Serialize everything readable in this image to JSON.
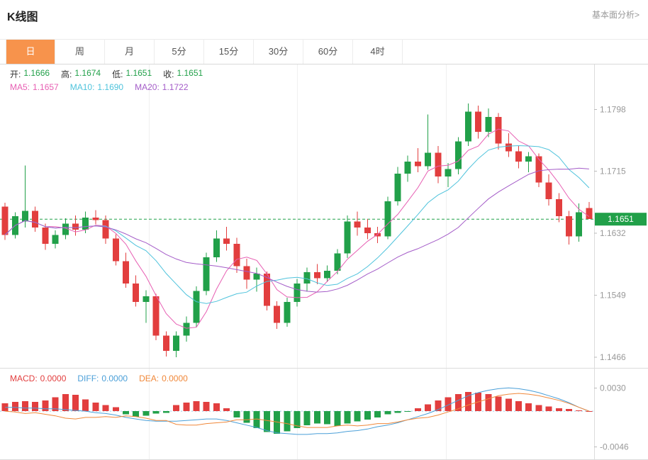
{
  "header": {
    "title": "K线图",
    "analysis_link": "基本面分析>"
  },
  "tabs": {
    "active_id": "day",
    "items": [
      {
        "id": "day",
        "label": "日"
      },
      {
        "id": "week",
        "label": "周"
      },
      {
        "id": "month",
        "label": "月"
      },
      {
        "id": "5min",
        "label": "5分"
      },
      {
        "id": "15min",
        "label": "15分"
      },
      {
        "id": "30min",
        "label": "30分"
      },
      {
        "id": "60min",
        "label": "60分"
      },
      {
        "id": "4hour",
        "label": "4时"
      }
    ]
  },
  "ohlc_legend": {
    "label_color": "#333333",
    "value_color": "#21a049",
    "items": [
      {
        "id": "open",
        "label": "开:",
        "value": "1.1666"
      },
      {
        "id": "high",
        "label": "高:",
        "value": "1.1674"
      },
      {
        "id": "low",
        "label": "低:",
        "value": "1.1651"
      },
      {
        "id": "close",
        "label": "收:",
        "value": "1.1651"
      }
    ]
  },
  "ma_legend": {
    "items": [
      {
        "id": "ma5",
        "label": "MA5:",
        "value": "1.1657",
        "color": "#e75fb3"
      },
      {
        "id": "ma10",
        "label": "MA10:",
        "value": "1.1690",
        "color": "#4fc3dc"
      },
      {
        "id": "ma20",
        "label": "MA20:",
        "value": "1.1722",
        "color": "#a45cc8"
      }
    ]
  },
  "macd_legend": {
    "items": [
      {
        "id": "macd",
        "label": "MACD:",
        "value": "0.0000",
        "color": "#e23e3e"
      },
      {
        "id": "diff",
        "label": "DIFF:",
        "value": "0.0000",
        "color": "#4a9fd8"
      },
      {
        "id": "dea",
        "label": "DEA:",
        "value": "0.0000",
        "color": "#f0883a"
      }
    ]
  },
  "colors": {
    "up": "#21a049",
    "down": "#e23e3e",
    "ma5": "#e75fb3",
    "ma10": "#4fc3dc",
    "ma20": "#a45cc8",
    "diff": "#4a9fd8",
    "dea": "#f0883a",
    "axis_text": "#999999",
    "tab_active_bg": "#f7934c",
    "border": "#dcdcdc",
    "grid": "#f0f0f0",
    "macd_zero_line": "#9ec9e8"
  },
  "chart_data": [
    {
      "type": "candlestick",
      "title": "K线图",
      "timeframe": "日",
      "y_axis_ticks": [
        "1.1798",
        "1.1715",
        "1.1632",
        "1.1549",
        "1.1466"
      ],
      "current_price": "1.1651",
      "ylim": [
        1.1452,
        1.1858
      ],
      "last_candle": {
        "open": "1.1666",
        "high": "1.1674",
        "low": "1.1651",
        "close": "1.1651"
      },
      "ma_values": {
        "ma5": "1.1657",
        "ma10": "1.1690",
        "ma20": "1.1722"
      },
      "legend_note": "green dashed line at current price 1.1651",
      "candles": [
        [
          1.1668,
          1.1673,
          1.1623,
          1.163
        ],
        [
          1.163,
          1.166,
          1.1625,
          1.1655
        ],
        [
          1.1648,
          1.1723,
          1.164,
          1.1662
        ],
        [
          1.1662,
          1.1668,
          1.1634,
          1.164
        ],
        [
          1.164,
          1.1645,
          1.161,
          1.1618
        ],
        [
          1.1618,
          1.1636,
          1.1612,
          1.163
        ],
        [
          1.163,
          1.1652,
          1.1624,
          1.1645
        ],
        [
          1.1645,
          1.1656,
          1.1629,
          1.1637
        ],
        [
          1.1637,
          1.1661,
          1.1632,
          1.1653
        ],
        [
          1.1653,
          1.1663,
          1.1644,
          1.165
        ],
        [
          1.165,
          1.1656,
          1.1618,
          1.1625
        ],
        [
          1.1625,
          1.1631,
          1.1589,
          1.1595
        ],
        [
          1.1595,
          1.1606,
          1.1559,
          1.1565
        ],
        [
          1.1565,
          1.1576,
          1.1534,
          1.154
        ],
        [
          1.154,
          1.1556,
          1.1512,
          1.1548
        ],
        [
          1.1548,
          1.1551,
          1.1489,
          1.1495
        ],
        [
          1.1495,
          1.1501,
          1.1467,
          1.1475
        ],
        [
          1.1475,
          1.1501,
          1.1466,
          1.1495
        ],
        [
          1.1495,
          1.1521,
          1.1487,
          1.1512
        ],
        [
          1.1512,
          1.1561,
          1.1506,
          1.1555
        ],
        [
          1.1555,
          1.1606,
          1.1549,
          1.16
        ],
        [
          1.16,
          1.1636,
          1.1594,
          1.1625
        ],
        [
          1.1625,
          1.1641,
          1.1609,
          1.1618
        ],
        [
          1.1618,
          1.1626,
          1.1579,
          1.1588
        ],
        [
          1.1588,
          1.1598,
          1.1558,
          1.157
        ],
        [
          1.157,
          1.1586,
          1.1554,
          1.1578
        ],
        [
          1.1578,
          1.1581,
          1.1529,
          1.1535
        ],
        [
          1.1535,
          1.1541,
          1.1504,
          1.1512
        ],
        [
          1.1512,
          1.1546,
          1.1507,
          1.154
        ],
        [
          1.154,
          1.1571,
          1.1534,
          1.1565
        ],
        [
          1.1565,
          1.1586,
          1.1554,
          1.158
        ],
        [
          1.158,
          1.1591,
          1.1564,
          1.1572
        ],
        [
          1.1572,
          1.1589,
          1.1567,
          1.1582
        ],
        [
          1.1582,
          1.1611,
          1.1577,
          1.1605
        ],
        [
          1.1605,
          1.1656,
          1.1599,
          1.1648
        ],
        [
          1.1648,
          1.1661,
          1.1629,
          1.164
        ],
        [
          1.164,
          1.1651,
          1.1624,
          1.1632
        ],
        [
          1.1632,
          1.1641,
          1.1619,
          1.1628
        ],
        [
          1.1628,
          1.1681,
          1.1624,
          1.1675
        ],
        [
          1.1675,
          1.1721,
          1.1669,
          1.1712
        ],
        [
          1.1712,
          1.1736,
          1.1701,
          1.1728
        ],
        [
          1.1728,
          1.1746,
          1.1714,
          1.1722
        ],
        [
          1.1722,
          1.1791,
          1.1717,
          1.174
        ],
        [
          1.174,
          1.1749,
          1.1699,
          1.1708
        ],
        [
          1.1708,
          1.1726,
          1.1694,
          1.1718
        ],
        [
          1.1718,
          1.1761,
          1.1711,
          1.1755
        ],
        [
          1.1755,
          1.1806,
          1.1749,
          1.1795
        ],
        [
          1.1795,
          1.1803,
          1.1759,
          1.1768
        ],
        [
          1.1768,
          1.1799,
          1.1761,
          1.1788
        ],
        [
          1.1788,
          1.1793,
          1.1744,
          1.1752
        ],
        [
          1.1752,
          1.1766,
          1.1734,
          1.1742
        ],
        [
          1.1742,
          1.1749,
          1.1719,
          1.1728
        ],
        [
          1.1728,
          1.1741,
          1.1714,
          1.1735
        ],
        [
          1.1735,
          1.1739,
          1.1694,
          1.17
        ],
        [
          1.17,
          1.1711,
          1.1669,
          1.1678
        ],
        [
          1.1678,
          1.1686,
          1.1647,
          1.1655
        ],
        [
          1.1655,
          1.1662,
          1.1617,
          1.1628
        ],
        [
          1.1628,
          1.1672,
          1.1621,
          1.166
        ],
        [
          1.1666,
          1.1674,
          1.1651,
          1.1651
        ]
      ]
    },
    {
      "type": "macd",
      "y_axis_ticks": [
        "0.0030",
        "-0.0046"
      ],
      "ylim": [
        -0.0063,
        0.0055
      ],
      "last_values": {
        "macd": "0.0000",
        "diff": "0.0000",
        "dea": "0.0000"
      },
      "histogram": [
        0.001,
        0.0012,
        0.0013,
        0.0012,
        0.0014,
        0.0018,
        0.0022,
        0.0021,
        0.0015,
        0.0011,
        0.0008,
        0.0005,
        -0.0004,
        -0.0007,
        -0.0006,
        -0.0003,
        -0.0002,
        0.0008,
        0.0011,
        0.0013,
        0.0012,
        0.001,
        0.0004,
        -0.0008,
        -0.0015,
        -0.0022,
        -0.0027,
        -0.0029,
        -0.0026,
        -0.0022,
        -0.0018,
        -0.0016,
        -0.0017,
        -0.0019,
        -0.0016,
        -0.0013,
        -0.0011,
        -0.0008,
        -0.0004,
        -0.0002,
        -0.0001,
        0.0004,
        0.0009,
        0.0014,
        0.0018,
        0.0022,
        0.0025,
        0.0024,
        0.0022,
        0.0019,
        0.0016,
        0.0013,
        0.001,
        0.0008,
        0.0006,
        0.0004,
        0.0003,
        0.0001,
        0.0
      ],
      "diff": [
        0.0005,
        0.0005,
        0.0004,
        0.0004,
        0.0003,
        0.0003,
        0.0002,
        0.0001,
        0.0,
        -0.0002,
        -0.0003,
        -0.0005,
        -0.0008,
        -0.001,
        -0.0012,
        -0.0013,
        -0.0013,
        -0.0013,
        -0.0012,
        -0.0011,
        -0.001,
        -0.001,
        -0.0012,
        -0.0015,
        -0.0018,
        -0.0021,
        -0.0025,
        -0.0028,
        -0.0029,
        -0.003,
        -0.003,
        -0.0029,
        -0.0029,
        -0.0028,
        -0.0026,
        -0.0025,
        -0.0023,
        -0.002,
        -0.0018,
        -0.0015,
        -0.0011,
        -0.0007,
        -0.0003,
        0.0002,
        0.0008,
        0.0014,
        0.002,
        0.0024,
        0.0027,
        0.0029,
        0.003,
        0.0029,
        0.0027,
        0.0024,
        0.002,
        0.0016,
        0.0011,
        0.0005,
        0.0
      ],
      "dea": [
        0.0,
        -0.0001,
        -0.0003,
        -0.0002,
        -0.0004,
        -0.0006,
        -0.0009,
        -0.001,
        -0.0008,
        -0.0008,
        -0.0007,
        -0.0008,
        -0.0006,
        -0.0007,
        -0.0009,
        -0.0012,
        -0.0012,
        -0.0017,
        -0.0018,
        -0.0018,
        -0.0016,
        -0.0015,
        -0.0014,
        -0.0011,
        -0.0011,
        -0.001,
        -0.0012,
        -0.0014,
        -0.0016,
        -0.0019,
        -0.0021,
        -0.0021,
        -0.0021,
        -0.0019,
        -0.0018,
        -0.0019,
        -0.0018,
        -0.0016,
        -0.0016,
        -0.0014,
        -0.0011,
        -0.0009,
        -0.0008,
        -0.0005,
        -0.0001,
        0.0003,
        0.0008,
        0.0012,
        0.0016,
        0.002,
        0.0022,
        0.0023,
        0.0022,
        0.002,
        0.0017,
        0.0014,
        0.001,
        0.0005,
        0.0
      ]
    }
  ]
}
